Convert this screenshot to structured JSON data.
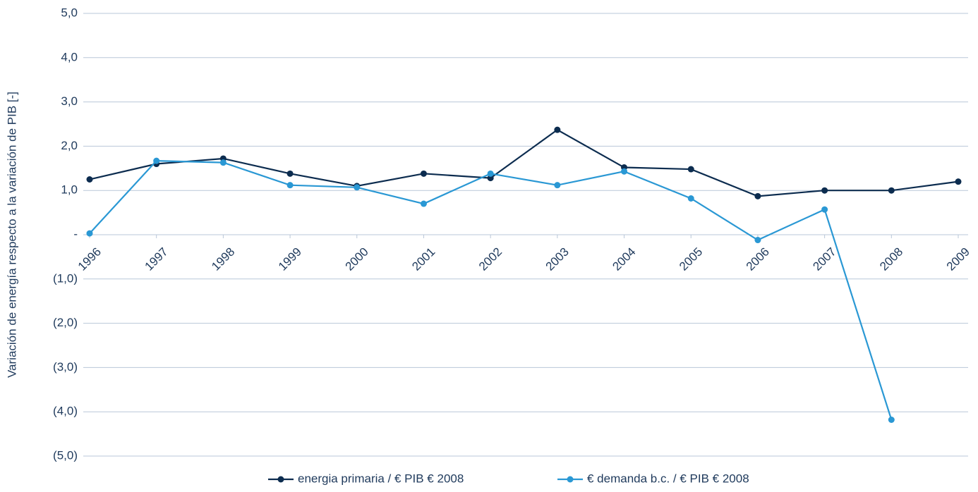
{
  "chart_data": {
    "type": "line",
    "y_label": "Variación de energía respecto a la variación de PIB [-]",
    "categories": [
      "1996",
      "1997",
      "1998",
      "1999",
      "2000",
      "2001",
      "2002",
      "2003",
      "2004",
      "2005",
      "2006",
      "2007",
      "2008",
      "2009"
    ],
    "series": [
      {
        "name": "energia primaria / € PIB € 2008",
        "color": "#0c2c4f",
        "values": [
          1.25,
          1.6,
          1.72,
          1.38,
          1.1,
          1.38,
          1.28,
          2.37,
          1.52,
          1.48,
          0.87,
          1.0,
          1.0,
          1.2
        ]
      },
      {
        "name": "€ demanda b.c. / € PIB € 2008",
        "color": "#2a98d4",
        "values": [
          0.03,
          1.67,
          1.63,
          1.12,
          1.07,
          0.7,
          1.38,
          1.12,
          1.43,
          0.82,
          -0.12,
          0.57,
          -4.18,
          null
        ]
      }
    ],
    "ylim": [
      -5,
      5
    ],
    "yticks": [
      {
        "value": 5,
        "label": "5,0"
      },
      {
        "value": 4,
        "label": "4,0"
      },
      {
        "value": 3,
        "label": "3,0"
      },
      {
        "value": 2,
        "label": "2,0"
      },
      {
        "value": 1,
        "label": "1,0"
      },
      {
        "value": 0,
        "label": "-"
      },
      {
        "value": -1,
        "label": "(1,0)"
      },
      {
        "value": -2,
        "label": "(2,0)"
      },
      {
        "value": -3,
        "label": "(3,0)"
      },
      {
        "value": -4,
        "label": "(4,0)"
      },
      {
        "value": -5,
        "label": "(5,0)"
      }
    ],
    "grid": true
  }
}
